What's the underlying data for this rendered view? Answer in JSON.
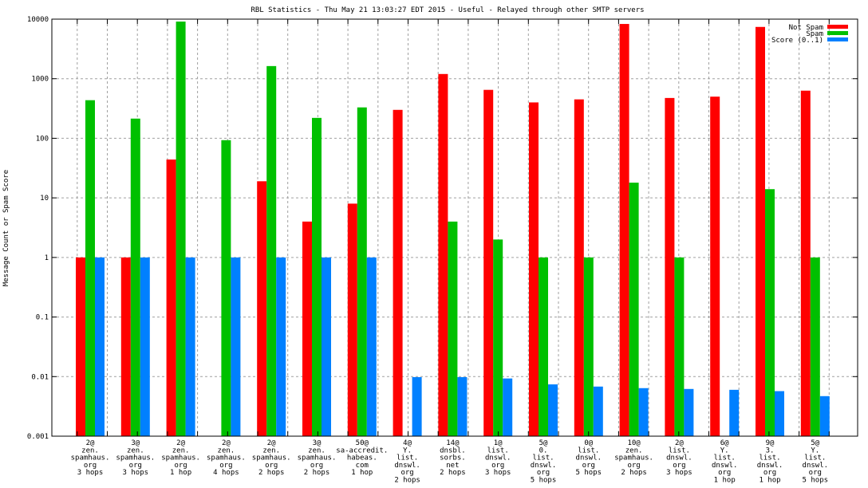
{
  "chart_data": {
    "type": "bar",
    "title": "RBL Statistics - Thu May 21 13:03:27 EDT 2015 - Useful - Relayed through other SMTP servers",
    "xlabel": "",
    "ylabel": "Message Count or Spam Score",
    "yscale": "log",
    "ylim": [
      0.001,
      10000
    ],
    "yticks": [
      "0.001",
      "0.01",
      "0.1",
      "1",
      "10",
      "100",
      "1000",
      "10000"
    ],
    "grid": true,
    "legend_position": "top-right",
    "categories": [
      [
        "2@",
        "zen.",
        "spamhaus.",
        "org",
        "3 hops"
      ],
      [
        "3@",
        "zen.",
        "spamhaus.",
        "org",
        "3 hops"
      ],
      [
        "2@",
        "zen.",
        "spamhaus.",
        "org",
        "1 hop"
      ],
      [
        "2@",
        "zen.",
        "spamhaus.",
        "org",
        "4 hops"
      ],
      [
        "2@",
        "zen.",
        "spamhaus.",
        "org",
        "2 hops"
      ],
      [
        "3@",
        "zen.",
        "spamhaus.",
        "org",
        "2 hops"
      ],
      [
        "50@",
        "sa-accredit.",
        "habeas.",
        "com",
        "1 hop"
      ],
      [
        "4@",
        "Y.",
        "list.",
        "dnswl.",
        "org",
        "2 hops"
      ],
      [
        "14@",
        "dnsbl.",
        "sorbs.",
        "net",
        "2 hops"
      ],
      [
        "1@",
        "list.",
        "dnswl.",
        "org",
        "3 hops"
      ],
      [
        "5@",
        "0.",
        "list.",
        "dnswl.",
        "org",
        "5 hops"
      ],
      [
        "0@",
        "list.",
        "dnswl.",
        "org",
        "5 hops"
      ],
      [
        "10@",
        "zen.",
        "spamhaus.",
        "org",
        "2 hops"
      ],
      [
        "2@",
        "list.",
        "dnswl.",
        "org",
        "3 hops"
      ],
      [
        "6@",
        "Y.",
        "list.",
        "dnswl.",
        "org",
        "1 hop"
      ],
      [
        "9@",
        "3.",
        "list.",
        "dnswl.",
        "org",
        "1 hop"
      ],
      [
        "5@",
        "Y.",
        "list.",
        "dnswl.",
        "org",
        "5 hops"
      ]
    ],
    "series": [
      {
        "name": "Not Spam",
        "color": "#ff0000",
        "values": [
          1,
          1,
          44,
          0,
          19,
          4,
          8,
          300,
          1200,
          650,
          400,
          450,
          8300,
          475,
          500,
          7400,
          630
        ]
      },
      {
        "name": "Spam",
        "color": "#00c000",
        "values": [
          436,
          214,
          9100,
          93,
          1630,
          220,
          330,
          0,
          4,
          2,
          1,
          1,
          18,
          1,
          0,
          14,
          1
        ]
      },
      {
        "name": "Score (0..1)",
        "color": "#0080ff",
        "values": [
          1,
          1,
          1,
          1,
          1,
          1,
          1,
          0.0098,
          0.0098,
          0.0093,
          0.0074,
          0.0068,
          0.0064,
          0.0062,
          0.006,
          0.0057,
          0.0047
        ]
      }
    ]
  }
}
